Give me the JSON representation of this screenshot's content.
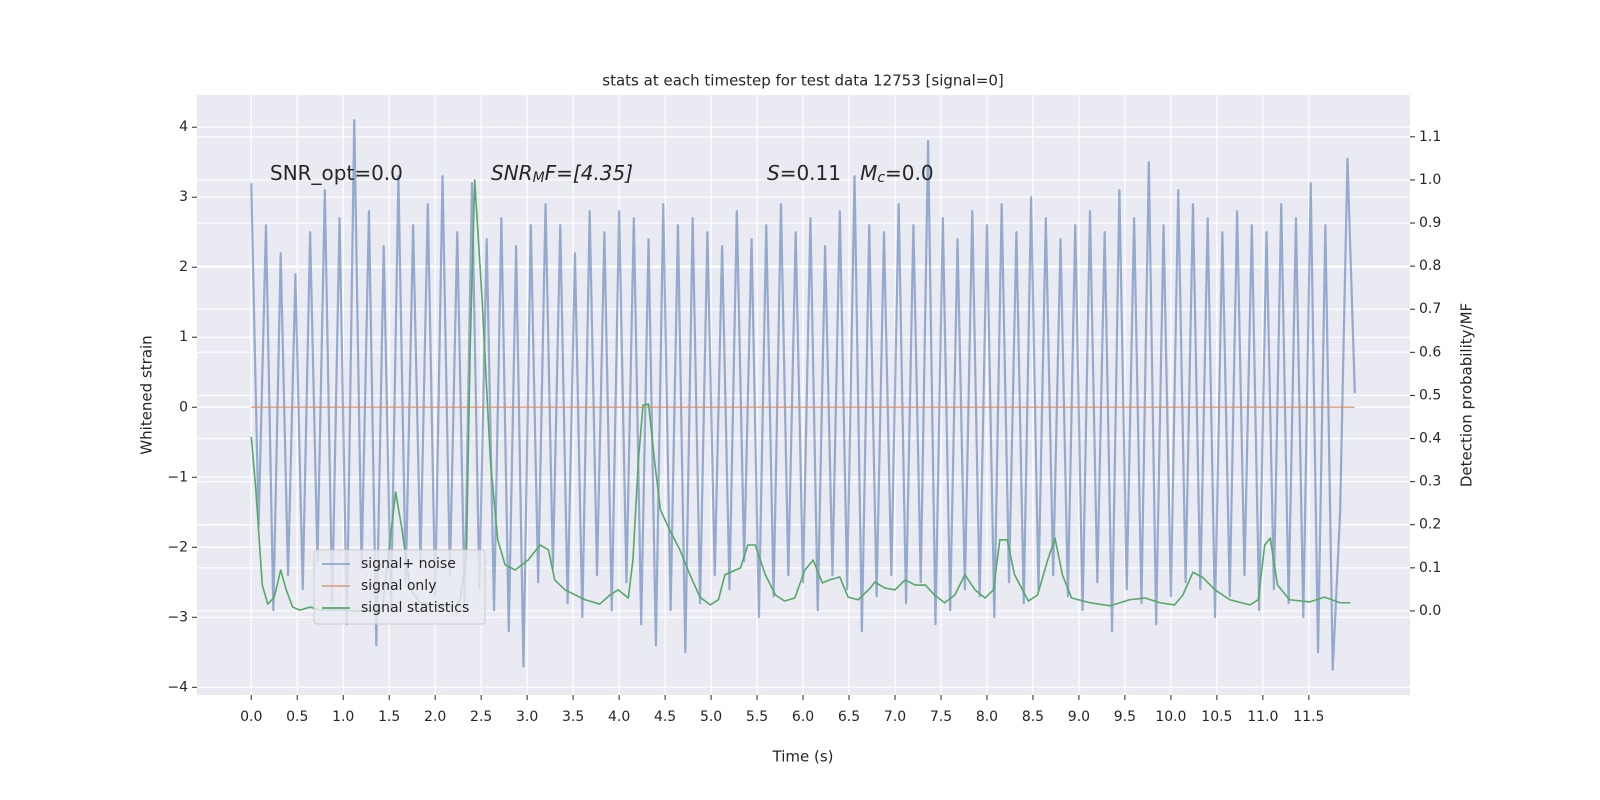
{
  "chart_data": {
    "type": "line",
    "title": "stats at each timestep for test data 12753 [signal=0]",
    "xlabel": "Time (s)",
    "ylabel": "Whitened strain",
    "y2label": "Detection probability/MF",
    "annotations": [
      {
        "parts": [
          {
            "text": "SNR_opt=0.0",
            "style": "normal"
          }
        ]
      },
      {
        "parts": [
          {
            "text": "SNR",
            "style": "italic"
          },
          {
            "text": "M",
            "style": "italic-sub"
          },
          {
            "text": "F=[4.35]",
            "style": "italic-mixed"
          }
        ]
      },
      {
        "parts": [
          {
            "text": "S",
            "style": "italic"
          },
          {
            "text": "=0.11   ",
            "style": "normal"
          },
          {
            "text": "M",
            "style": "italic"
          },
          {
            "text": "c",
            "style": "italic-sub"
          },
          {
            "text": "=0.0",
            "style": "normal"
          }
        ]
      }
    ],
    "xlim": [
      -0.59,
      12.6
    ],
    "ylim": [
      -4.11,
      4.46
    ],
    "y2lim": [
      -0.195,
      1.197
    ],
    "xticks": [
      {
        "value": 0,
        "label": "0.0"
      },
      0.5,
      {
        "value": 1,
        "label": "1.0"
      },
      1.5,
      {
        "value": 2,
        "label": "2.0"
      },
      2.5,
      {
        "value": 3,
        "label": "3.0"
      },
      3.5,
      {
        "value": 4,
        "label": "4.0"
      },
      4.5,
      {
        "value": 5,
        "label": "5.0"
      },
      5.5,
      {
        "value": 6,
        "label": "6.0"
      },
      6.5,
      {
        "value": 7,
        "label": "7.0"
      },
      7.5,
      {
        "value": 8,
        "label": "8.0"
      },
      8.5,
      {
        "value": 9,
        "label": "9.0"
      },
      9.5,
      {
        "value": 10,
        "label": "10.0"
      },
      10.5,
      {
        "value": 11,
        "label": "11.0"
      },
      11.5
    ],
    "yticks": [
      {
        "value": -4,
        "label": "−4"
      },
      {
        "value": -3,
        "label": "−3"
      },
      {
        "value": -2,
        "label": "−2"
      },
      {
        "value": -1,
        "label": "−1"
      },
      0,
      1,
      2,
      3,
      4
    ],
    "y2ticks": [
      {
        "value": 0,
        "label": "0.0"
      },
      0.1,
      0.2,
      0.3,
      0.4,
      0.5,
      0.6,
      0.7,
      0.8,
      0.9,
      {
        "value": 1,
        "label": "1.0"
      },
      1.1
    ],
    "grid": true,
    "legend": "lower left",
    "series": [
      {
        "name": "signal+ noise",
        "color": "#4c72b0",
        "alpha": 0.55,
        "x": [
          0,
          0.08,
          0.16,
          0.24,
          0.32,
          0.4,
          0.48,
          0.56,
          0.64,
          0.72,
          0.8,
          0.88,
          0.96,
          1.04,
          1.12,
          1.2,
          1.28,
          1.36,
          1.44,
          1.52,
          1.6,
          1.68,
          1.76,
          1.84,
          1.92,
          2,
          2.08,
          2.16,
          2.24,
          2.32,
          2.4,
          2.48,
          2.56,
          2.64,
          2.72,
          2.8,
          2.88,
          2.96,
          3.04,
          3.12,
          3.2,
          3.28,
          3.36,
          3.44,
          3.52,
          3.6,
          3.68,
          3.76,
          3.84,
          3.92,
          4,
          4.08,
          4.16,
          4.24,
          4.32,
          4.4,
          4.48,
          4.56,
          4.64,
          4.72,
          4.8,
          4.88,
          4.96,
          5.04,
          5.12,
          5.2,
          5.28,
          5.36,
          5.44,
          5.52,
          5.6,
          5.68,
          5.76,
          5.84,
          5.92,
          6,
          6.08,
          6.16,
          6.24,
          6.32,
          6.4,
          6.48,
          6.56,
          6.64,
          6.72,
          6.8,
          6.88,
          6.96,
          7.04,
          7.12,
          7.2,
          7.28,
          7.36,
          7.44,
          7.52,
          7.6,
          7.68,
          7.76,
          7.84,
          7.92,
          8,
          8.08,
          8.16,
          8.24,
          8.32,
          8.4,
          8.48,
          8.56,
          8.64,
          8.72,
          8.8,
          8.88,
          8.96,
          9.04,
          9.12,
          9.2,
          9.28,
          9.36,
          9.44,
          9.52,
          9.6,
          9.68,
          9.76,
          9.84,
          9.92,
          10,
          10.08,
          10.16,
          10.24,
          10.32,
          10.4,
          10.48,
          10.56,
          10.64,
          10.72,
          10.8,
          10.88,
          10.96,
          11.04,
          11.12,
          11.2,
          11.28,
          11.36,
          11.44,
          11.52,
          11.6,
          11.68,
          11.76,
          11.84,
          11.92,
          12
        ],
        "values": [
          3.2,
          -1.7,
          2.6,
          -2.9,
          2.2,
          -2.4,
          1.9,
          -2.6,
          2.5,
          -2.2,
          3.1,
          -2.8,
          2.7,
          -3.1,
          4.1,
          -2.3,
          2.8,
          -3.4,
          2.3,
          -2.9,
          3.3,
          -2.5,
          2.6,
          -2.2,
          2.9,
          -2.7,
          3.3,
          -2.4,
          2.5,
          -2.8,
          3.2,
          -2.6,
          2.4,
          -2.9,
          2.7,
          -3.2,
          2.3,
          -3.7,
          2.6,
          -2.5,
          2.9,
          -2.3,
          2.6,
          -2.8,
          2.2,
          -3.0,
          2.8,
          -2.4,
          2.5,
          -2.9,
          2.8,
          -2.5,
          2.7,
          -3.1,
          2.4,
          -3.4,
          2.9,
          -2.9,
          2.6,
          -3.5,
          2.7,
          -2.8,
          2.5,
          -2.4,
          2.3,
          -2.6,
          2.8,
          -2.2,
          2.4,
          -3.0,
          2.6,
          -2.7,
          2.9,
          -2.4,
          2.5,
          -2.5,
          2.7,
          -2.9,
          2.3,
          -2.4,
          2.8,
          -2.6,
          3.3,
          -3.2,
          2.6,
          -2.7,
          2.5,
          -2.4,
          2.9,
          -2.8,
          2.6,
          -2.5,
          3.8,
          -3.1,
          2.7,
          -2.9,
          2.4,
          -2.6,
          2.8,
          -2.7,
          2.6,
          -3.0,
          2.9,
          -2.5,
          2.5,
          -2.8,
          3.0,
          -2.6,
          2.7,
          -2.4,
          2.4,
          -2.7,
          2.6,
          -2.9,
          2.8,
          -2.5,
          2.5,
          -3.2,
          3.1,
          -2.6,
          2.7,
          -2.8,
          3.5,
          -3.1,
          2.6,
          -2.7,
          3.1,
          -2.5,
          2.9,
          -2.6,
          2.7,
          -3.0,
          2.5,
          -2.7,
          2.8,
          -2.4,
          2.6,
          -2.9,
          2.5,
          -2.6,
          2.9,
          -2.8,
          2.7,
          -3.0,
          3.2,
          -3.5,
          2.6,
          -3.75,
          -1.5,
          3.55,
          0.2
        ]
      },
      {
        "name": "signal only",
        "color": "#dd8452",
        "alpha": 0.7,
        "x": [
          0,
          12
        ],
        "values": [
          0,
          0
        ]
      },
      {
        "name": "signal statistics",
        "color": "#55a868",
        "alpha": 1,
        "axis": "y2",
        "x": [
          0,
          0.05,
          0.12,
          0.18,
          0.25,
          0.32,
          0.38,
          0.45,
          0.53,
          0.64,
          0.75,
          0.97,
          1.18,
          1.4,
          1.43,
          1.51,
          1.57,
          1.64,
          1.73,
          1.84,
          2.05,
          2.22,
          2.27,
          2.34,
          2.38,
          2.43,
          2.51,
          2.6,
          2.68,
          2.76,
          2.87,
          3.01,
          3.14,
          3.23,
          3.3,
          3.41,
          3.63,
          3.79,
          3.9,
          3.99,
          4.1,
          4.15,
          4.21,
          4.26,
          4.32,
          4.39,
          4.45,
          4.55,
          4.66,
          4.77,
          4.88,
          4.99,
          5.08,
          5.15,
          5.32,
          5.4,
          5.48,
          5.59,
          5.7,
          5.8,
          5.91,
          6.02,
          6.11,
          6.21,
          6.29,
          6.4,
          6.49,
          6.6,
          6.73,
          6.78,
          6.89,
          7.0,
          7.11,
          7.22,
          7.33,
          7.43,
          7.54,
          7.65,
          7.76,
          7.87,
          7.98,
          8.07,
          8.14,
          8.22,
          8.3,
          8.45,
          8.55,
          8.66,
          8.74,
          8.82,
          8.92,
          9.12,
          9.34,
          9.55,
          9.72,
          9.88,
          10.04,
          10.13,
          10.24,
          10.35,
          10.48,
          10.64,
          10.86,
          10.95,
          11.02,
          11.08,
          11.16,
          11.29,
          11.51,
          11.67,
          11.84,
          11.95
        ],
        "values": [
          0.404,
          0.28,
          0.06,
          0.016,
          0.032,
          0.095,
          0.049,
          0.009,
          0.002,
          0.009,
          0.002,
          0.002,
          0,
          0.002,
          0.014,
          0.165,
          0.276,
          0.188,
          0.049,
          0.019,
          0.012,
          0.01,
          0.026,
          0.13,
          0.606,
          1.0,
          0.722,
          0.35,
          0.165,
          0.107,
          0.095,
          0.118,
          0.153,
          0.142,
          0.072,
          0.049,
          0.026,
          0.016,
          0.037,
          0.049,
          0.03,
          0.118,
          0.35,
          0.478,
          0.48,
          0.339,
          0.234,
          0.188,
          0.142,
          0.084,
          0.032,
          0.014,
          0.026,
          0.084,
          0.1,
          0.153,
          0.153,
          0.084,
          0.037,
          0.023,
          0.03,
          0.095,
          0.118,
          0.065,
          0.072,
          0.079,
          0.032,
          0.026,
          0.053,
          0.067,
          0.053,
          0.049,
          0.072,
          0.06,
          0.06,
          0.037,
          0.019,
          0.037,
          0.084,
          0.049,
          0.03,
          0.049,
          0.165,
          0.165,
          0.084,
          0.023,
          0.037,
          0.118,
          0.169,
          0.084,
          0.03,
          0.019,
          0.012,
          0.026,
          0.03,
          0.019,
          0.014,
          0.037,
          0.09,
          0.077,
          0.049,
          0.026,
          0.014,
          0.026,
          0.153,
          0.169,
          0.06,
          0.026,
          0.021,
          0.032,
          0.019,
          0.019
        ]
      }
    ]
  }
}
